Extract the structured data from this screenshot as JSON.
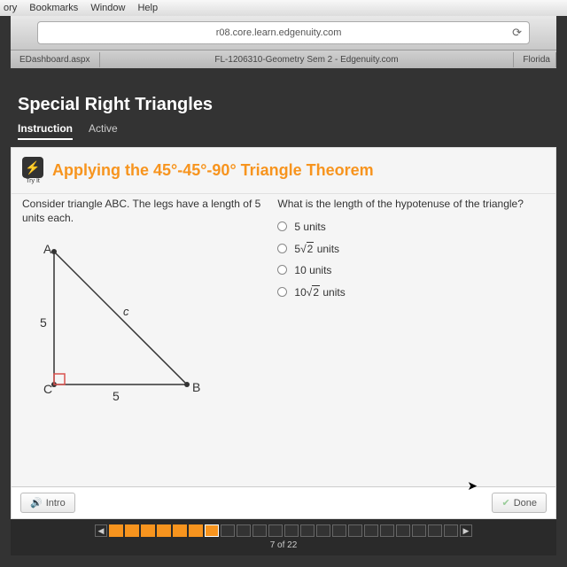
{
  "mac_menu": {
    "items": [
      "ory",
      "Bookmarks",
      "Window",
      "Help"
    ]
  },
  "browser": {
    "url": "r08.core.learn.edgenuity.com",
    "tab_left": "EDashboard.aspx",
    "tab_center": "FL-1206310-Geometry Sem 2 - Edgenuity.com",
    "tab_right": "Florida"
  },
  "lesson": {
    "title": "Special Right Triangles",
    "tab_instruction": "Instruction",
    "tab_active": "Active"
  },
  "section": {
    "tryit_label": "Try It",
    "title": "Applying the 45°-45°-90° Triangle Theorem"
  },
  "left": {
    "prompt": "Consider triangle ABC. The legs have a length of 5 units each.",
    "labels": {
      "A": "A",
      "B": "B",
      "C": "C",
      "c": "c",
      "leg": "5"
    }
  },
  "right": {
    "question": "What is the length of the hypotenuse of the triangle?",
    "options": [
      {
        "type": "plain",
        "text": "5 units"
      },
      {
        "type": "sqrt",
        "coef": "5",
        "rad": "2",
        "suffix": " units"
      },
      {
        "type": "plain",
        "text": "10 units"
      },
      {
        "type": "sqrt",
        "coef": "10",
        "rad": "2",
        "suffix": " units"
      }
    ]
  },
  "footer": {
    "intro": "Intro",
    "done": "Done"
  },
  "progress": {
    "total": 22,
    "current": 7,
    "done_count": 6,
    "label": "7 of 22"
  },
  "colors": {
    "accent": "#f7941e",
    "bg": "#333333"
  }
}
